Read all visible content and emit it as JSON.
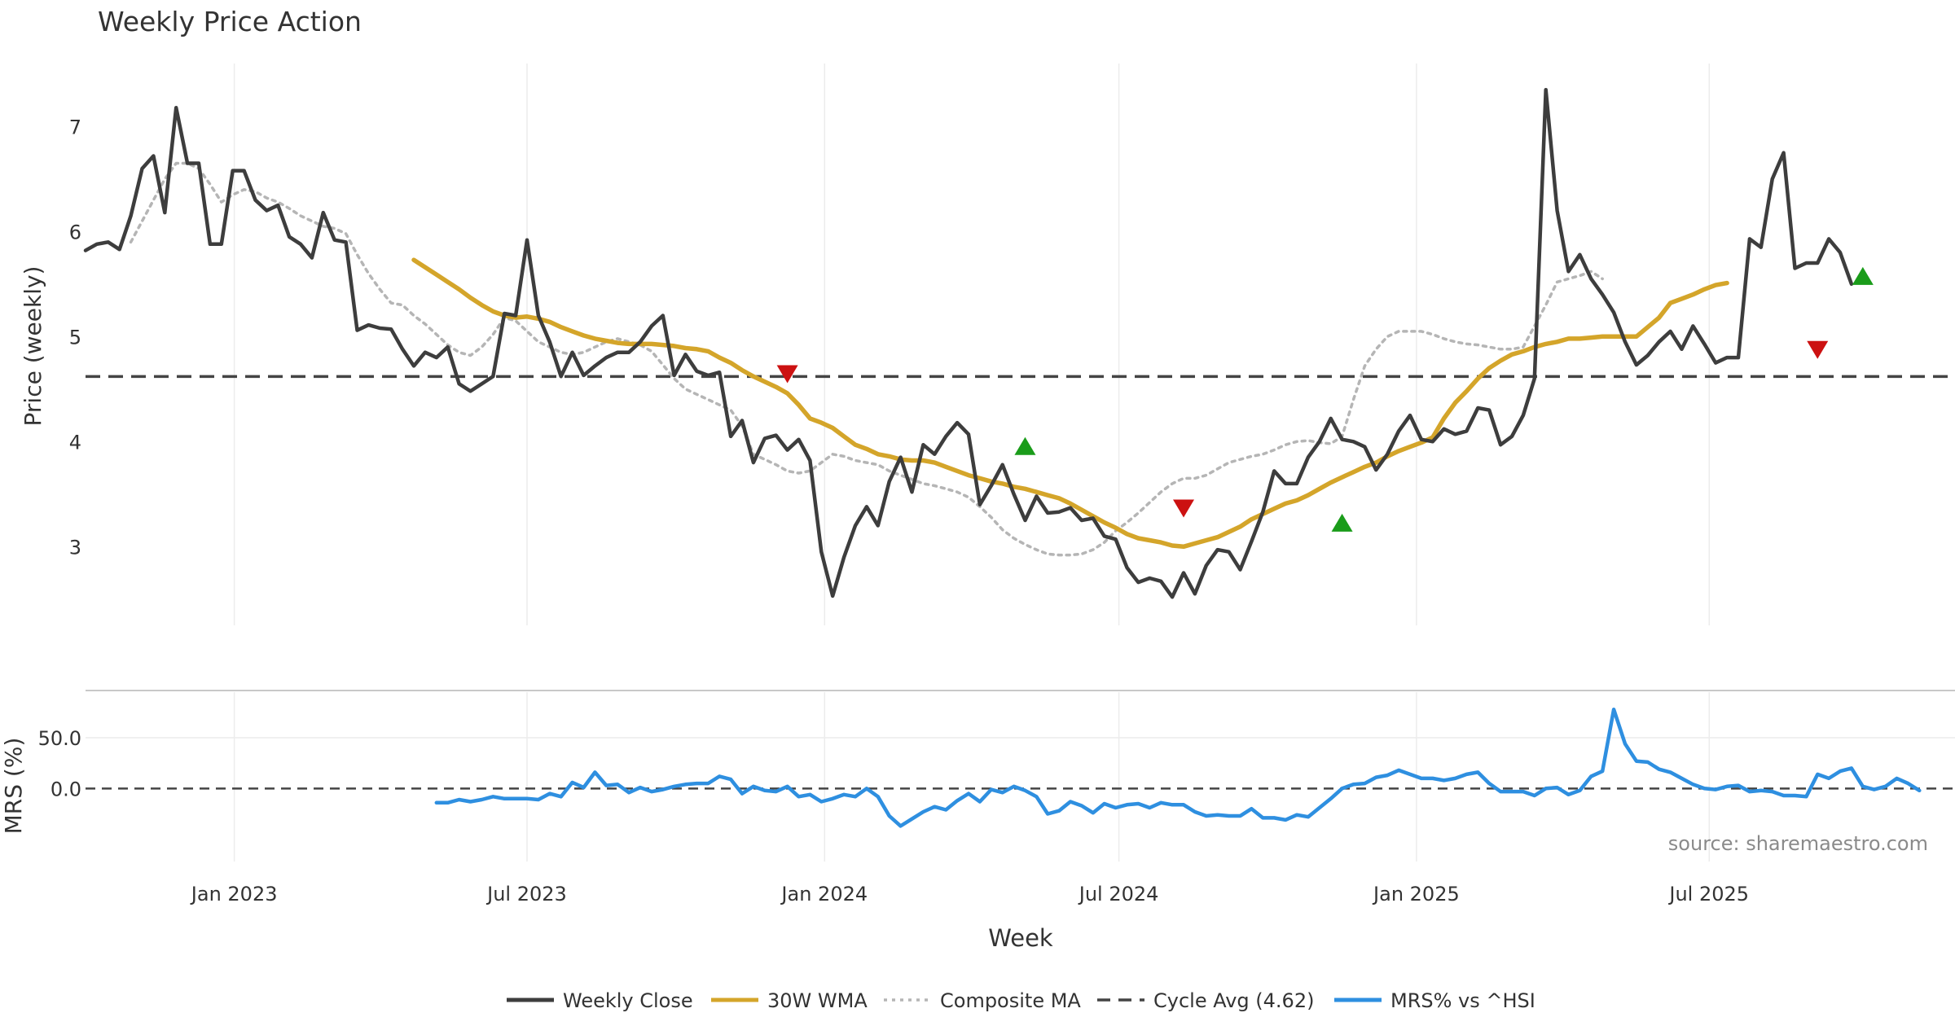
{
  "chart_data": {
    "type": "line",
    "title": "Weekly Price Action",
    "xlabel": "Week",
    "x_ticks": [
      "Jan 2023",
      "Jul 2023",
      "Jan 2024",
      "Jul 2024",
      "Jan 2025",
      "Jul 2025"
    ],
    "x_tick_dates": [
      "2023-01-01",
      "2023-07-01",
      "2024-01-01",
      "2024-07-01",
      "2025-01-01",
      "2025-07-01"
    ],
    "x_range": [
      "2022-10-01",
      "2025-11-30"
    ],
    "source": "source: sharemaestro.com",
    "colors": {
      "close": "#3d3d3d",
      "wma": "#d4a52a",
      "composite": "#b5b5b5",
      "cycle": "#444444",
      "mrs": "#2e8fe0",
      "buy": "#1a9c1a",
      "sell": "#cc1111",
      "grid": "#ececec"
    },
    "price_panel": {
      "ylabel": "Price (weekly)",
      "ylim": [
        2.25,
        7.6
      ],
      "y_ticks": [
        3,
        4,
        5,
        6,
        7
      ],
      "y_tick_labels": [
        "3",
        "4",
        "5",
        "6",
        "7"
      ],
      "cycle_avg": 4.62,
      "series": [
        {
          "name": "Weekly Close",
          "start": "2022-10-01",
          "step_days": 7,
          "values": [
            5.82,
            5.88,
            5.9,
            5.83,
            6.15,
            6.6,
            6.72,
            6.18,
            7.18,
            6.65,
            6.65,
            5.88,
            5.88,
            6.58,
            6.58,
            6.3,
            6.2,
            6.25,
            5.95,
            5.88,
            5.75,
            6.18,
            5.92,
            5.9,
            5.06,
            5.11,
            5.08,
            5.07,
            4.88,
            4.72,
            4.85,
            4.8,
            4.9,
            4.55,
            4.48,
            4.55,
            4.62,
            5.22,
            5.2,
            5.92,
            5.2,
            4.95,
            4.62,
            4.85,
            4.63,
            4.72,
            4.8,
            4.85,
            4.85,
            4.95,
            5.1,
            5.2,
            4.63,
            4.83,
            4.67,
            4.63,
            4.66,
            4.05,
            4.2,
            3.8,
            4.03,
            4.06,
            3.92,
            4.02,
            3.82,
            2.95,
            2.53,
            2.9,
            3.2,
            3.38,
            3.2,
            3.62,
            3.85,
            3.52,
            3.97,
            3.88,
            4.05,
            4.18,
            4.07,
            3.4,
            3.58,
            3.78,
            3.5,
            3.25,
            3.48,
            3.32,
            3.33,
            3.37,
            3.25,
            3.27,
            3.1,
            3.07,
            2.8,
            2.66,
            2.7,
            2.67,
            2.52,
            2.75,
            2.55,
            2.82,
            2.97,
            2.95,
            2.78,
            3.05,
            3.33,
            3.72,
            3.6,
            3.6,
            3.85,
            4.0,
            4.22,
            4.02,
            4.0,
            3.95,
            3.73,
            3.88,
            4.1,
            4.25,
            4.02,
            4.0,
            4.12,
            4.07,
            4.1,
            4.32,
            4.3,
            3.97,
            4.05,
            4.25,
            4.6,
            7.35,
            6.2,
            5.62,
            5.78,
            5.55,
            5.4,
            5.23,
            4.95,
            4.73,
            4.82,
            4.95,
            5.05,
            4.88,
            5.1,
            4.93,
            4.75,
            4.8,
            4.8,
            5.93,
            5.85,
            6.5,
            6.75,
            5.65,
            5.7,
            5.7,
            5.93,
            5.8,
            5.5
          ]
        },
        {
          "name": "30W WMA",
          "start": "2023-04-22",
          "step_days": 7,
          "values": [
            5.73,
            5.66,
            5.59,
            5.52,
            5.45,
            5.37,
            5.3,
            5.24,
            5.2,
            5.18,
            5.19,
            5.17,
            5.14,
            5.09,
            5.05,
            5.01,
            4.98,
            4.96,
            4.94,
            4.93,
            4.93,
            4.93,
            4.92,
            4.91,
            4.89,
            4.88,
            4.86,
            4.8,
            4.75,
            4.68,
            4.62,
            4.57,
            4.52,
            4.46,
            4.35,
            4.22,
            4.18,
            4.13,
            4.05,
            3.97,
            3.93,
            3.88,
            3.86,
            3.83,
            3.82,
            3.82,
            3.8,
            3.76,
            3.72,
            3.68,
            3.65,
            3.62,
            3.6,
            3.57,
            3.55,
            3.52,
            3.49,
            3.46,
            3.41,
            3.35,
            3.29,
            3.23,
            3.18,
            3.12,
            3.08,
            3.06,
            3.04,
            3.01,
            3.0,
            3.03,
            3.06,
            3.09,
            3.14,
            3.19,
            3.26,
            3.31,
            3.36,
            3.41,
            3.44,
            3.49,
            3.55,
            3.61,
            3.66,
            3.71,
            3.76,
            3.8,
            3.86,
            3.91,
            3.95,
            3.99,
            4.04,
            4.22,
            4.37,
            4.48,
            4.6,
            4.7,
            4.77,
            4.83,
            4.86,
            4.9,
            4.93,
            4.95,
            4.98,
            4.98,
            4.99,
            5.0,
            5.0,
            5.0,
            5.0,
            5.09,
            5.18,
            5.32,
            5.36,
            5.4,
            5.45,
            5.49,
            5.51
          ]
        },
        {
          "name": "Composite MA",
          "start": "2022-10-29",
          "step_days": 7,
          "values": [
            5.9,
            6.1,
            6.3,
            6.5,
            6.65,
            6.65,
            6.6,
            6.45,
            6.28,
            6.35,
            6.4,
            6.38,
            6.32,
            6.28,
            6.22,
            6.15,
            6.1,
            6.05,
            6.03,
            5.98,
            5.78,
            5.6,
            5.45,
            5.32,
            5.3,
            5.2,
            5.12,
            5.02,
            4.92,
            4.85,
            4.82,
            4.9,
            5.02,
            5.18,
            5.15,
            5.05,
            4.95,
            4.9,
            4.85,
            4.83,
            4.85,
            4.9,
            4.95,
            4.98,
            4.95,
            4.92,
            4.86,
            4.73,
            4.6,
            4.5,
            4.45,
            4.4,
            4.35,
            4.3,
            4.15,
            3.88,
            3.83,
            3.78,
            3.72,
            3.7,
            3.72,
            3.8,
            3.88,
            3.86,
            3.82,
            3.8,
            3.78,
            3.72,
            3.68,
            3.64,
            3.6,
            3.58,
            3.55,
            3.52,
            3.47,
            3.38,
            3.28,
            3.16,
            3.08,
            3.02,
            2.97,
            2.93,
            2.92,
            2.92,
            2.93,
            2.97,
            3.04,
            3.15,
            3.23,
            3.32,
            3.42,
            3.52,
            3.6,
            3.65,
            3.65,
            3.68,
            3.74,
            3.8,
            3.83,
            3.86,
            3.88,
            3.92,
            3.97,
            4.0,
            4.01,
            3.99,
            3.98,
            4.05,
            4.4,
            4.72,
            4.88,
            5.0,
            5.05,
            5.05,
            5.05,
            5.02,
            4.98,
            4.95,
            4.93,
            4.92,
            4.9,
            4.88,
            4.88,
            4.9,
            5.1,
            5.3,
            5.52,
            5.55,
            5.58,
            5.62,
            5.55
          ]
        }
      ],
      "buy_signals": [
        {
          "date": "2024-05-04",
          "value": 3.95
        },
        {
          "date": "2024-11-16",
          "value": 3.22
        },
        {
          "date": "2025-10-04",
          "value": 5.57
        }
      ],
      "sell_signals": [
        {
          "date": "2023-12-09",
          "value": 4.65
        },
        {
          "date": "2024-08-10",
          "value": 3.37
        },
        {
          "date": "2025-09-06",
          "value": 4.88
        }
      ]
    },
    "mrs_panel": {
      "ylabel": "MRS (%)",
      "ylim": [
        -72,
        95
      ],
      "y_ticks": [
        0,
        50
      ],
      "y_tick_labels": [
        "0.0",
        "50.0"
      ],
      "zero_line": 0,
      "series": [
        {
          "name": "MRS% vs ^HSI",
          "start": "2023-05-06",
          "step_days": 7,
          "values": [
            -14,
            -14,
            -11,
            -13,
            -11,
            -8,
            -10,
            -10,
            -10,
            -11,
            -5,
            -8,
            6,
            1,
            16,
            3,
            4,
            -4,
            1,
            -3,
            -1,
            2,
            4,
            5,
            5,
            12,
            9,
            -5,
            2,
            -2,
            -3,
            2,
            -8,
            -6,
            -13,
            -10,
            -6,
            -8,
            0,
            -8,
            -27,
            -37,
            -30,
            -23,
            -18,
            -21,
            -12,
            -5,
            -13,
            -1,
            -4,
            2,
            -2,
            -8,
            -25,
            -22,
            -13,
            -17,
            -24,
            -15,
            -19,
            -16,
            -15,
            -19,
            -14,
            -16,
            -16,
            -23,
            -27,
            -26,
            -27,
            -27,
            -20,
            -29,
            -29,
            -31,
            -26,
            -28,
            -19,
            -10,
            0,
            4,
            5,
            11,
            13,
            18,
            14,
            10,
            10,
            8,
            10,
            14,
            16,
            5,
            -3,
            -3,
            -3,
            -7,
            0,
            1,
            -6,
            -2,
            12,
            17,
            78,
            44,
            27,
            26,
            19,
            16,
            10,
            4,
            0,
            -1,
            2,
            3,
            -3,
            -2,
            -3,
            -7,
            -7,
            -8,
            14,
            10,
            17,
            20,
            2,
            -1,
            2,
            10,
            5,
            -2
          ]
        }
      ]
    },
    "legend": [
      {
        "label": "Weekly Close",
        "style": "solid",
        "color": "#3d3d3d"
      },
      {
        "label": "30W WMA",
        "style": "solid",
        "color": "#d4a52a"
      },
      {
        "label": "Composite MA",
        "style": "dotted",
        "color": "#b5b5b5"
      },
      {
        "label": "Cycle Avg (4.62)",
        "style": "dashed",
        "color": "#444444"
      },
      {
        "label": "MRS% vs ^HSI",
        "style": "solid",
        "color": "#2e8fe0"
      }
    ]
  }
}
